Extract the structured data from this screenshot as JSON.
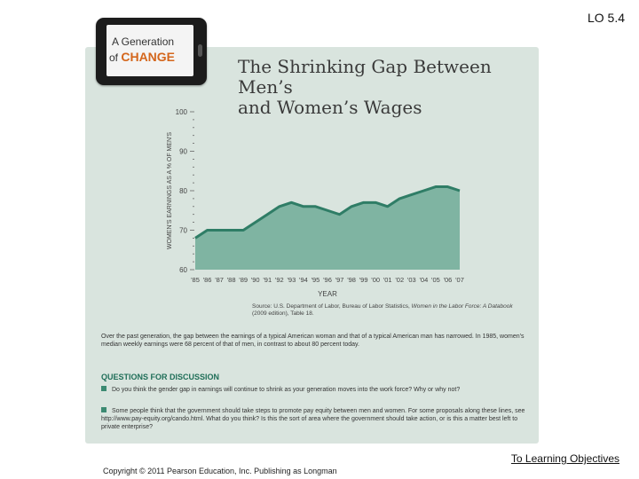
{
  "lo_tag": "LO 5.4",
  "phone": {
    "line1": "A Generation",
    "line2_prefix": "of ",
    "line2_emph": "CHANGE"
  },
  "title_line1": "The Shrinking Gap Between Men’s",
  "title_line2": "and Women’s Wages",
  "source": {
    "prefix": "Source: U.S. Department of Labor, Bureau of Labor Statistics, ",
    "italic": "Women in the Labor Force: A Databook",
    "suffix": " (2009 edition), Table 18."
  },
  "paragraph": "Over the past generation, the gap between the earnings of a typical American woman and that of a typical American man has narrowed. In 1985, women’s median weekly earnings were 68 percent of that of men, in contrast to about 80 percent today.",
  "questions_heading": "QUESTIONS FOR DISCUSSION",
  "questions": [
    "Do you think the gender gap in earnings will continue to shrink as your generation moves into the work force? Why or why not?",
    "Some people think that the government should take steps to promote pay equity between men and women. For some proposals along these lines, see http://www.pay-equity.org/cando.html. What do you think? Is this the sort of area where the government should take action, or is this a matter best left to private enterprise?"
  ],
  "link_text": "To Learning Objectives",
  "copyright": "Copyright © 2011 Pearson Education, Inc. Publishing as Longman",
  "colors": {
    "area_fill": "#7fb4a2",
    "line": "#2f7d66",
    "panel": "#d9e4de"
  },
  "chart_data": {
    "type": "area",
    "title": "The Shrinking Gap Between Men’s and Women’s Wages",
    "xlabel": "YEAR",
    "ylabel": "WOMEN'S EARNINGS AS A % OF MEN'S",
    "ylim": [
      60,
      100
    ],
    "yticks": [
      60,
      70,
      80,
      90,
      100
    ],
    "x": [
      "'85",
      "'86",
      "'87",
      "'88",
      "'89",
      "'90",
      "'91",
      "'92",
      "'93",
      "'94",
      "'95",
      "'96",
      "'97",
      "'98",
      "'99",
      "'00",
      "'01",
      "'02",
      "'03",
      "'04",
      "'05",
      "'06",
      "'07"
    ],
    "values": [
      68,
      70,
      70,
      70,
      70,
      72,
      74,
      76,
      77,
      76,
      76,
      75,
      74,
      76,
      77,
      77,
      76,
      78,
      79,
      80,
      81,
      81,
      80
    ],
    "grid": false
  }
}
